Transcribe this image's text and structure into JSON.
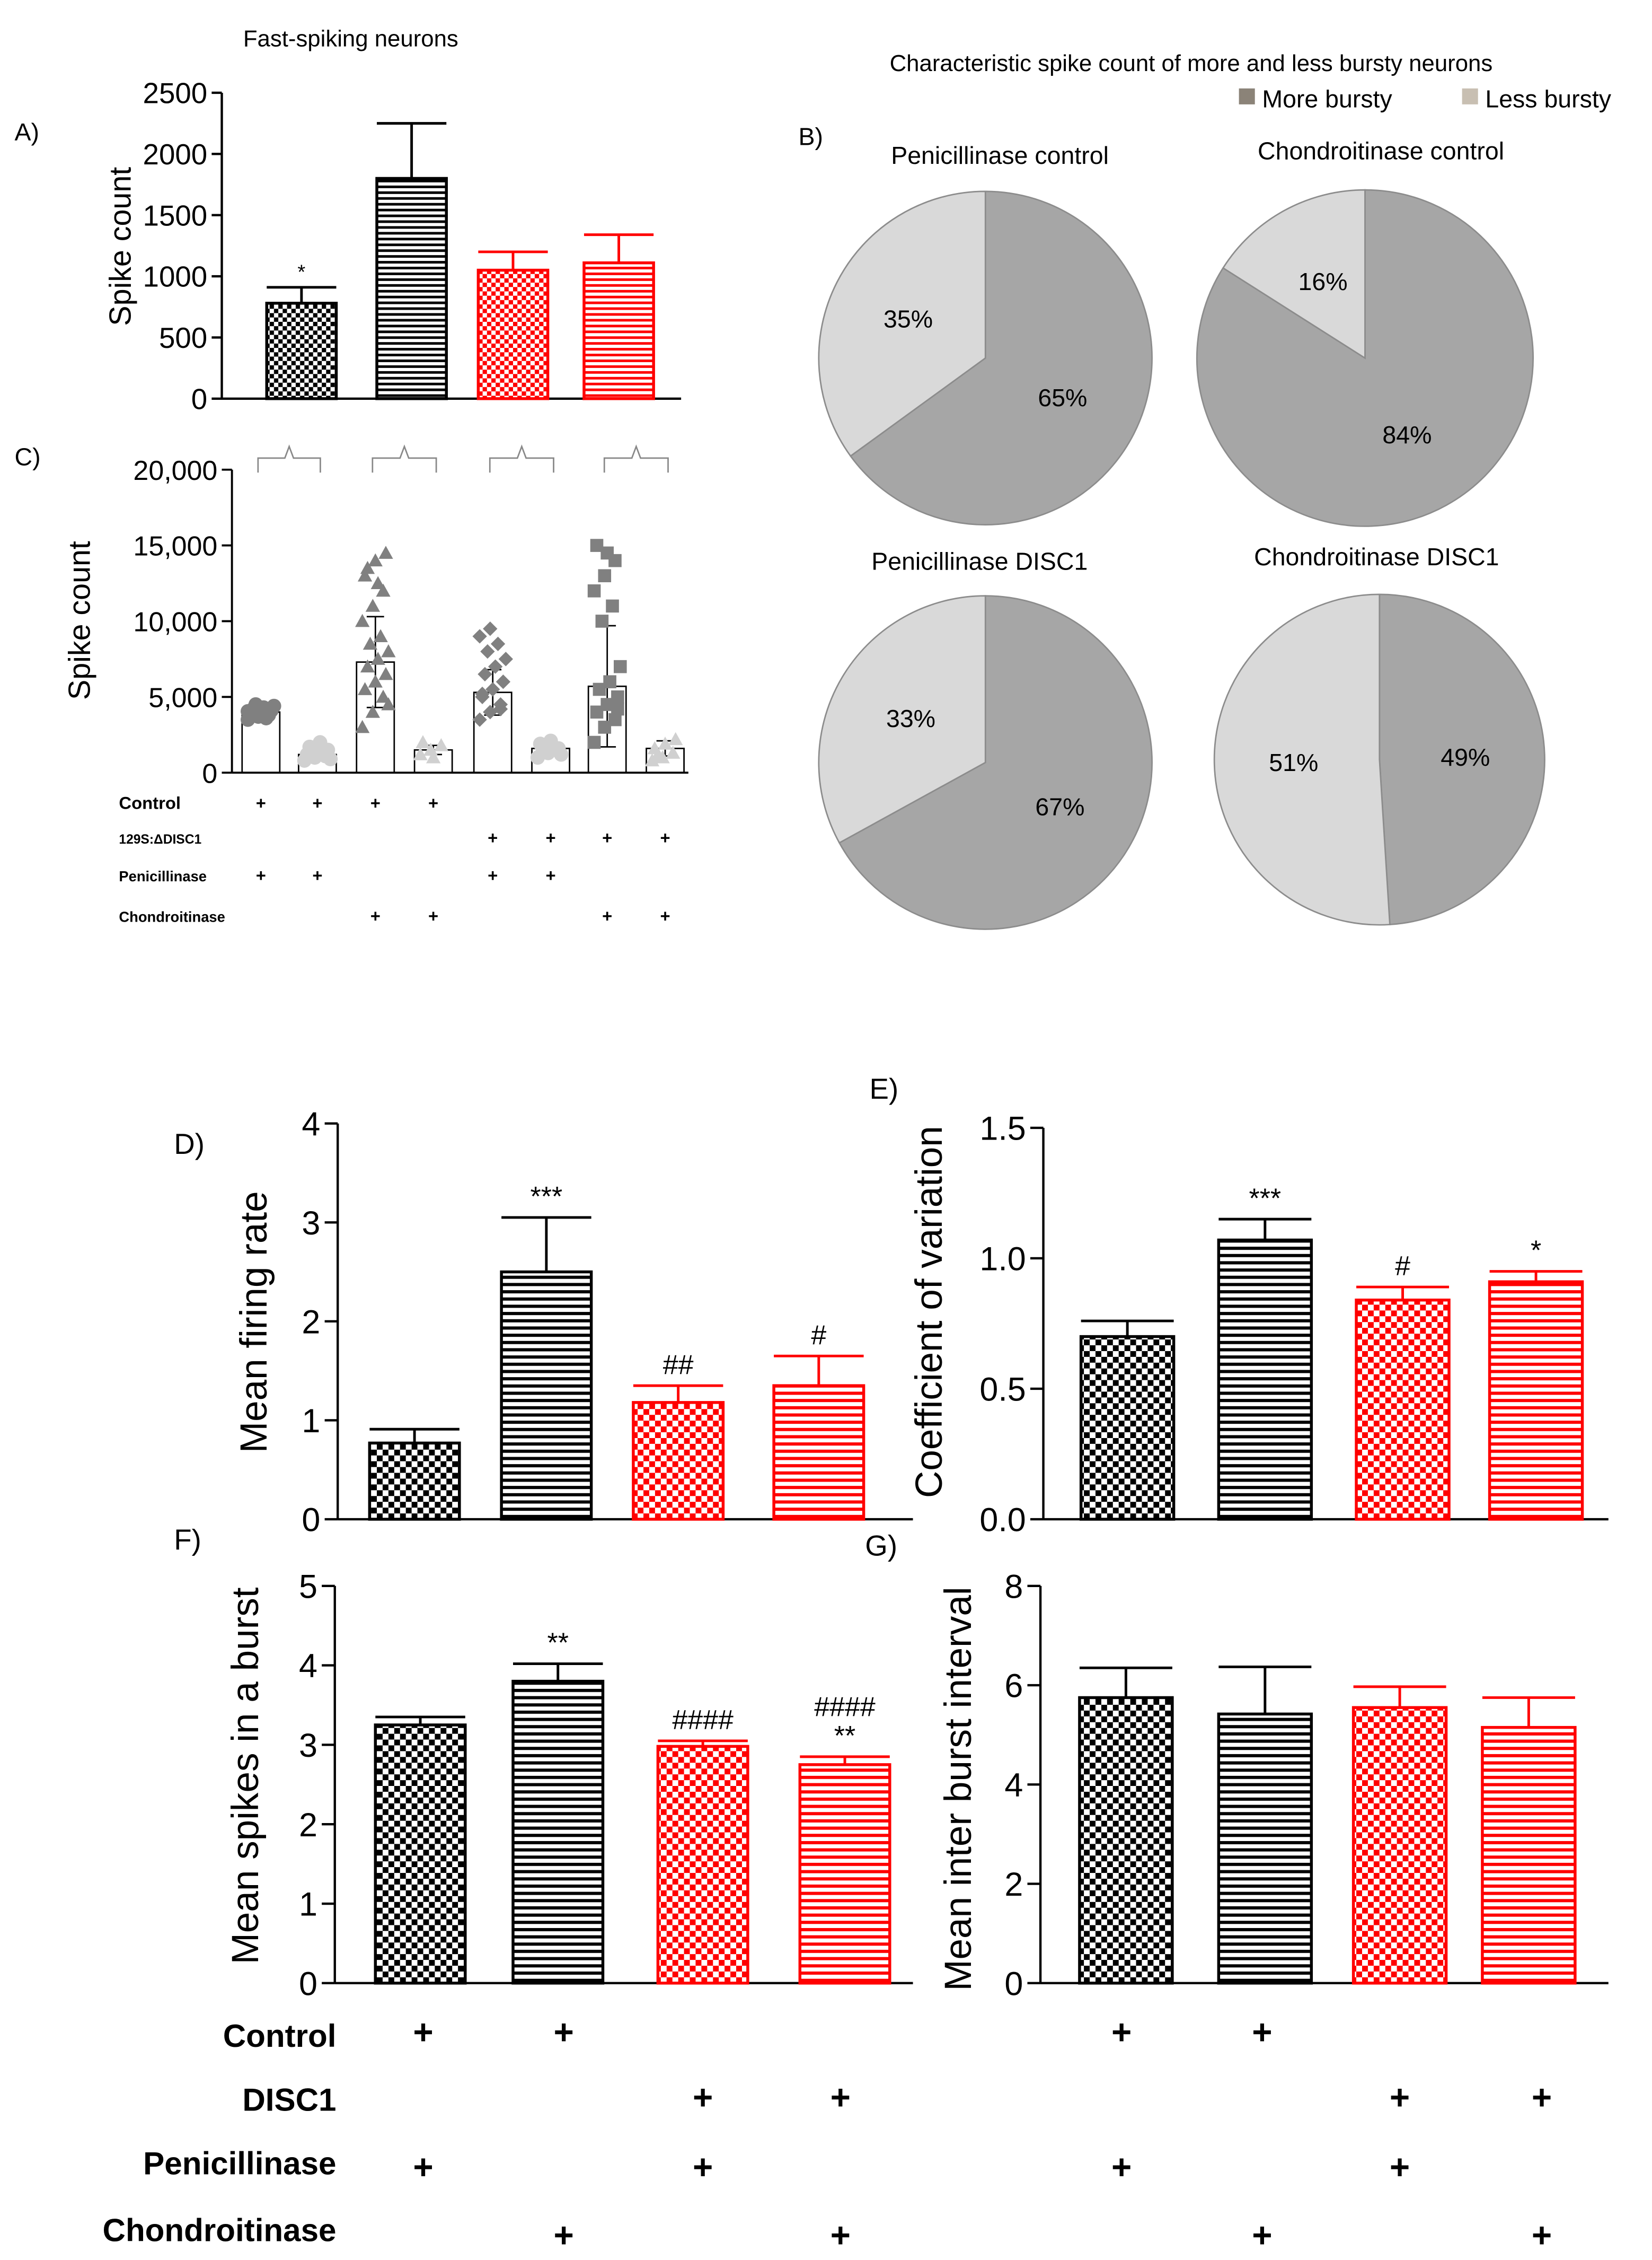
{
  "colors": {
    "black": "#000000",
    "red": "#ff0000",
    "pie_more": "#a6a6a6",
    "pie_less": "#d9d9d9",
    "scatter_more": "#808080",
    "scatter_less": "#d0d0d0",
    "pie_edge": "#8c8c8c",
    "legend_more": "#8b8378",
    "legend_less": "#c8bfb2"
  },
  "labels": {
    "A": "A)",
    "B": "B)",
    "C": "C)",
    "D": "D)",
    "E": "E)",
    "F": "F)",
    "G": "G)"
  },
  "chart_data": [
    {
      "id": "A",
      "type": "bar",
      "title": "Fast-spiking neurons",
      "ylabel": "Spike count",
      "ylim": [
        0,
        2500
      ],
      "yticks": [
        0,
        500,
        1000,
        1500,
        2000,
        2500
      ],
      "ytick_labels": [
        "0",
        "500",
        "1000",
        "1500",
        "2000",
        "2500"
      ],
      "values": [
        780,
        1800,
        1050,
        1110
      ],
      "errors": [
        130,
        450,
        150,
        230
      ],
      "colors": [
        "black",
        "black",
        "red",
        "red"
      ],
      "patterns": [
        "check",
        "stripe",
        "check",
        "stripe"
      ],
      "annotations": [
        [
          "*"
        ],
        [],
        [],
        []
      ]
    },
    {
      "id": "B",
      "type": "pie",
      "title": "Characteristic spike count of more and less bursty neurons",
      "legend": [
        "More bursty",
        "Less bursty"
      ],
      "pies": [
        {
          "title": "Penicillinase control",
          "more": 65,
          "less": 35,
          "more_label": "65%",
          "less_label": "35%"
        },
        {
          "title": "Chondroitinase control",
          "more": 84,
          "less": 16,
          "more_label": "84%",
          "less_label": "16%"
        },
        {
          "title": "Penicillinase DISC1",
          "more": 67,
          "less": 33,
          "more_label": "67%",
          "less_label": "33%"
        },
        {
          "title": "Chondroitinase DISC1",
          "more": 49,
          "less": 51,
          "more_label": "49%",
          "less_label": "51%"
        }
      ]
    },
    {
      "id": "C",
      "type": "scatter",
      "ylabel": "Spike count",
      "ylim": [
        0,
        20000
      ],
      "yticks": [
        0,
        5000,
        10000,
        15000,
        20000
      ],
      "ytick_labels": [
        "0",
        "5,000",
        "10,000",
        "15,000",
        "20,000"
      ],
      "groups": [
        {
          "mean": 4000,
          "sd": 400,
          "marker": "circle",
          "tone": "more",
          "points": [
            3500,
            3700,
            3800,
            3900,
            4000,
            4100,
            4200,
            4300,
            4400,
            4500,
            3600,
            4050
          ]
        },
        {
          "mean": 1200,
          "sd": 400,
          "marker": "circle",
          "tone": "less",
          "points": [
            800,
            1000,
            1100,
            1200,
            1300,
            1500,
            1700,
            2000,
            900,
            1400
          ]
        },
        {
          "mean": 7300,
          "sd": 3000,
          "marker": "triangle",
          "tone": "more",
          "points": [
            3000,
            4000,
            5000,
            5500,
            6000,
            6500,
            7000,
            7500,
            8000,
            8500,
            9000,
            10000,
            11000,
            12000,
            13000,
            14000,
            14500,
            13500,
            12500,
            4500
          ]
        },
        {
          "mean": 1500,
          "sd": 300,
          "marker": "triangle",
          "tone": "less",
          "points": [
            1200,
            1500,
            1800,
            2000,
            1000
          ]
        },
        {
          "mean": 5300,
          "sd": 1500,
          "marker": "diamond",
          "tone": "more",
          "points": [
            3500,
            4000,
            4500,
            5000,
            5500,
            6000,
            6500,
            7000,
            7500,
            8000,
            8500,
            9000,
            9500,
            4200,
            5200
          ]
        },
        {
          "mean": 1600,
          "sd": 400,
          "marker": "circle",
          "tone": "less",
          "points": [
            1000,
            1300,
            1600,
            1900,
            2100,
            1200,
            1500
          ]
        },
        {
          "mean": 5700,
          "sd": 4000,
          "marker": "square",
          "tone": "more",
          "points": [
            2000,
            3000,
            3500,
            4000,
            4500,
            5000,
            5500,
            6000,
            7000,
            10000,
            11000,
            12000,
            13000,
            14000,
            15000,
            14500,
            4200
          ]
        },
        {
          "mean": 1600,
          "sd": 500,
          "marker": "triangle",
          "tone": "less",
          "points": [
            800,
            1000,
            1300,
            1600,
            1900,
            2200,
            1100
          ]
        }
      ],
      "conditions": {
        "rows": [
          "Control",
          "129S:ΔDISC1",
          "Penicillinase",
          "Chondroitinase"
        ],
        "marks": [
          [
            1,
            1,
            1,
            1,
            0,
            0,
            0,
            0
          ],
          [
            0,
            0,
            0,
            0,
            1,
            1,
            1,
            1
          ],
          [
            1,
            1,
            0,
            0,
            1,
            1,
            0,
            0
          ],
          [
            0,
            0,
            1,
            1,
            0,
            0,
            1,
            1
          ]
        ],
        "symbol": "+"
      }
    },
    {
      "id": "D",
      "type": "bar",
      "ylabel": "Mean firing rate",
      "ylim": [
        0,
        4
      ],
      "yticks": [
        0,
        1,
        2,
        3,
        4
      ],
      "ytick_labels": [
        "0",
        "1",
        "2",
        "3",
        "4"
      ],
      "values": [
        0.77,
        2.5,
        1.18,
        1.35
      ],
      "errors": [
        0.14,
        0.55,
        0.17,
        0.3
      ],
      "colors": [
        "black",
        "black",
        "red",
        "red"
      ],
      "patterns": [
        "check",
        "stripe",
        "check",
        "stripe"
      ],
      "annotations": [
        [],
        [
          "***"
        ],
        [
          "##"
        ],
        [
          "#"
        ]
      ]
    },
    {
      "id": "E",
      "type": "bar",
      "ylabel": "Coefficient of variation",
      "ylim": [
        0,
        1.5
      ],
      "yticks": [
        0,
        0.5,
        1.0,
        1.5
      ],
      "ytick_labels": [
        "0.0",
        "0.5",
        "1.0",
        "1.5"
      ],
      "values": [
        0.7,
        1.07,
        0.84,
        0.91
      ],
      "errors": [
        0.06,
        0.08,
        0.05,
        0.04
      ],
      "colors": [
        "black",
        "black",
        "red",
        "red"
      ],
      "patterns": [
        "check",
        "stripe",
        "check",
        "stripe"
      ],
      "annotations": [
        [],
        [
          "***"
        ],
        [
          "#"
        ],
        [
          "*"
        ]
      ]
    },
    {
      "id": "F",
      "type": "bar",
      "ylabel": "Mean spikes in a burst",
      "ylim": [
        0,
        5
      ],
      "yticks": [
        0,
        1,
        2,
        3,
        4,
        5
      ],
      "ytick_labels": [
        "0",
        "1",
        "2",
        "3",
        "4",
        "5"
      ],
      "values": [
        3.25,
        3.8,
        2.98,
        2.75
      ],
      "errors": [
        0.1,
        0.22,
        0.07,
        0.1
      ],
      "colors": [
        "black",
        "black",
        "red",
        "red"
      ],
      "patterns": [
        "check",
        "stripe",
        "check",
        "stripe"
      ],
      "annotations": [
        [],
        [
          "**"
        ],
        [
          "####"
        ],
        [
          "####",
          "**"
        ]
      ]
    },
    {
      "id": "G",
      "type": "bar",
      "ylabel": "Mean inter burst interval",
      "ylim": [
        0,
        8
      ],
      "yticks": [
        0,
        2,
        4,
        6,
        8
      ],
      "ytick_labels": [
        "0",
        "2",
        "4",
        "6",
        "8"
      ],
      "values": [
        5.75,
        5.42,
        5.55,
        5.15
      ],
      "errors": [
        0.6,
        0.95,
        0.42,
        0.6
      ],
      "colors": [
        "black",
        "black",
        "red",
        "red"
      ],
      "patterns": [
        "check",
        "stripe",
        "check",
        "stripe"
      ],
      "annotations": [
        [],
        [],
        [],
        []
      ]
    }
  ],
  "bottom_conditions": {
    "rows": [
      "Control",
      "DISC1",
      "Penicillinase",
      "Chondroitinase"
    ],
    "marks": [
      [
        1,
        1,
        0,
        0
      ],
      [
        0,
        0,
        1,
        1
      ],
      [
        1,
        0,
        1,
        0
      ],
      [
        0,
        1,
        0,
        1
      ]
    ],
    "symbol": "+"
  }
}
